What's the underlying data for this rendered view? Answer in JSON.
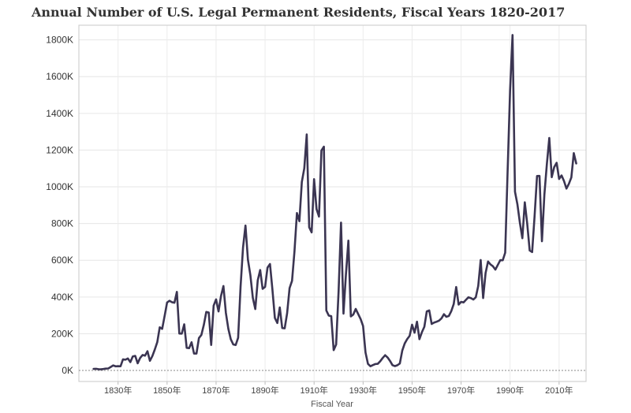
{
  "chart_data": {
    "type": "line",
    "title": "Annual Number of U.S. Legal Permanent Residents, Fiscal Years 1820-2017",
    "xlabel": "Fiscal Year",
    "ylabel": "",
    "xlim": [
      1814,
      2021
    ],
    "ylim": [
      -60000,
      1880000
    ],
    "grid": true,
    "legend": "none",
    "line_color": "#3b3552",
    "y_ticks": [
      0,
      200000,
      400000,
      600000,
      800000,
      1000000,
      1200000,
      1400000,
      1600000,
      1800000
    ],
    "y_tick_labels": [
      "0K",
      "200K",
      "400K",
      "600K",
      "800K",
      "1000K",
      "1200K",
      "1400K",
      "1600K",
      "1800K"
    ],
    "x_ticks": [
      1830,
      1850,
      1870,
      1890,
      1910,
      1930,
      1950,
      1970,
      1990,
      2010
    ],
    "x_tick_labels": [
      "1830年",
      "1850年",
      "1870年",
      "1890年",
      "1910年",
      "1930年",
      "1950年",
      "1970年",
      "1990年",
      "2010年"
    ],
    "series": [
      {
        "x": [
          1820,
          1821,
          1822,
          1823,
          1824,
          1825,
          1826,
          1827,
          1828,
          1829,
          1830,
          1831,
          1832,
          1833,
          1834,
          1835,
          1836,
          1837,
          1838,
          1839,
          1840,
          1841,
          1842,
          1843,
          1844,
          1845,
          1846,
          1847,
          1848,
          1849,
          1850,
          1851,
          1852,
          1853,
          1854,
          1855,
          1856,
          1857,
          1858,
          1859,
          1860,
          1861,
          1862,
          1863,
          1864,
          1865,
          1866,
          1867,
          1868,
          1869,
          1870,
          1871,
          1872,
          1873,
          1874,
          1875,
          1876,
          1877,
          1878,
          1879,
          1880,
          1881,
          1882,
          1883,
          1884,
          1885,
          1886,
          1887,
          1888,
          1889,
          1890,
          1891,
          1892,
          1893,
          1894,
          1895,
          1896,
          1897,
          1898,
          1899,
          1900,
          1901,
          1902,
          1903,
          1904,
          1905,
          1906,
          1907,
          1908,
          1909,
          1910,
          1911,
          1912,
          1913,
          1914,
          1915,
          1916,
          1917,
          1918,
          1919,
          1920,
          1921,
          1922,
          1923,
          1924,
          1925,
          1926,
          1927,
          1928,
          1929,
          1930,
          1931,
          1932,
          1933,
          1934,
          1935,
          1936,
          1937,
          1938,
          1939,
          1940,
          1941,
          1942,
          1943,
          1944,
          1945,
          1946,
          1947,
          1948,
          1949,
          1950,
          1951,
          1952,
          1953,
          1954,
          1955,
          1956,
          1957,
          1958,
          1959,
          1960,
          1961,
          1962,
          1963,
          1964,
          1965,
          1966,
          1967,
          1968,
          1969,
          1970,
          1971,
          1972,
          1973,
          1974,
          1975,
          1976,
          1977,
          1978,
          1979,
          1980,
          1981,
          1982,
          1983,
          1984,
          1985,
          1986,
          1987,
          1988,
          1989,
          1990,
          1991,
          1992,
          1993,
          1994,
          1995,
          1996,
          1997,
          1998,
          1999,
          2000,
          2001,
          2002,
          2003,
          2004,
          2005,
          2006,
          2007,
          2008,
          2009,
          2010,
          2011,
          2012,
          2013,
          2014,
          2015,
          2016,
          2017
        ],
        "values": [
          8385,
          9127,
          6911,
          6354,
          7912,
          10199,
          10837,
          18875,
          27382,
          22520,
          23322,
          22633,
          60482,
          58640,
          65365,
          45374,
          76242,
          79340,
          38914,
          68069,
          84066,
          80289,
          104565,
          52496,
          78615,
          114371,
          154416,
          234968,
          226527,
          297024,
          369980,
          379466,
          371603,
          368645,
          427833,
          200877,
          200436,
          251306,
          123126,
          121282,
          153640,
          91918,
          91985,
          176282,
          193418,
          248120,
          318568,
          315722,
          138840,
          352768,
          387203,
          321350,
          404806,
          459803,
          313339,
          227498,
          169986,
          141857,
          138469,
          177826,
          457257,
          669431,
          788992,
          603322,
          518592,
          395346,
          334203,
          490109,
          546889,
          444427,
          455302,
          560319,
          579663,
          439730,
          285631,
          258536,
          343267,
          230832,
          229299,
          311715,
          448572,
          487918,
          648743,
          857046,
          812870,
          1026499,
          1100735,
          1285349,
          779870,
          751786,
          1041570,
          878587,
          838172,
          1197892,
          1218480,
          326700,
          298826,
          295403,
          110618,
          141132,
          430001,
          805228,
          309556,
          522919,
          706896,
          294314,
          304488,
          335175,
          307255,
          279678,
          241700,
          97139,
          35576,
          23068,
          29470,
          34956,
          36329,
          50244,
          67895,
          82998,
          70756,
          51776,
          28781,
          23725,
          28551,
          38119,
          108721,
          147292,
          170570,
          188317,
          249187,
          205717,
          265520,
          170434,
          208177,
          237790,
          321625,
          326867,
          253265,
          260686,
          265398,
          271344,
          283763,
          306260,
          292248,
          296697,
          323040,
          361972,
          454448,
          358579,
          373326,
          370478,
          384685,
          398515,
          393919,
          386194,
          398613,
          460348,
          601442,
          394244,
          530639,
          593235,
          577279,
          567279,
          549302,
          575052,
          600669,
          599851,
          641338,
          1088947,
          1527315,
          1826595,
          973445,
          903915,
          803993,
          720177,
          915560,
          797847,
          653206,
          644787,
          841002,
          1058902,
          1059356,
          703542,
          957883,
          1122257,
          1266129,
          1052415,
          1107126,
          1130818,
          1042625,
          1062040,
          1031631,
          990553,
          1016518,
          1051031,
          1183505,
          1127167
        ]
      }
    ]
  }
}
